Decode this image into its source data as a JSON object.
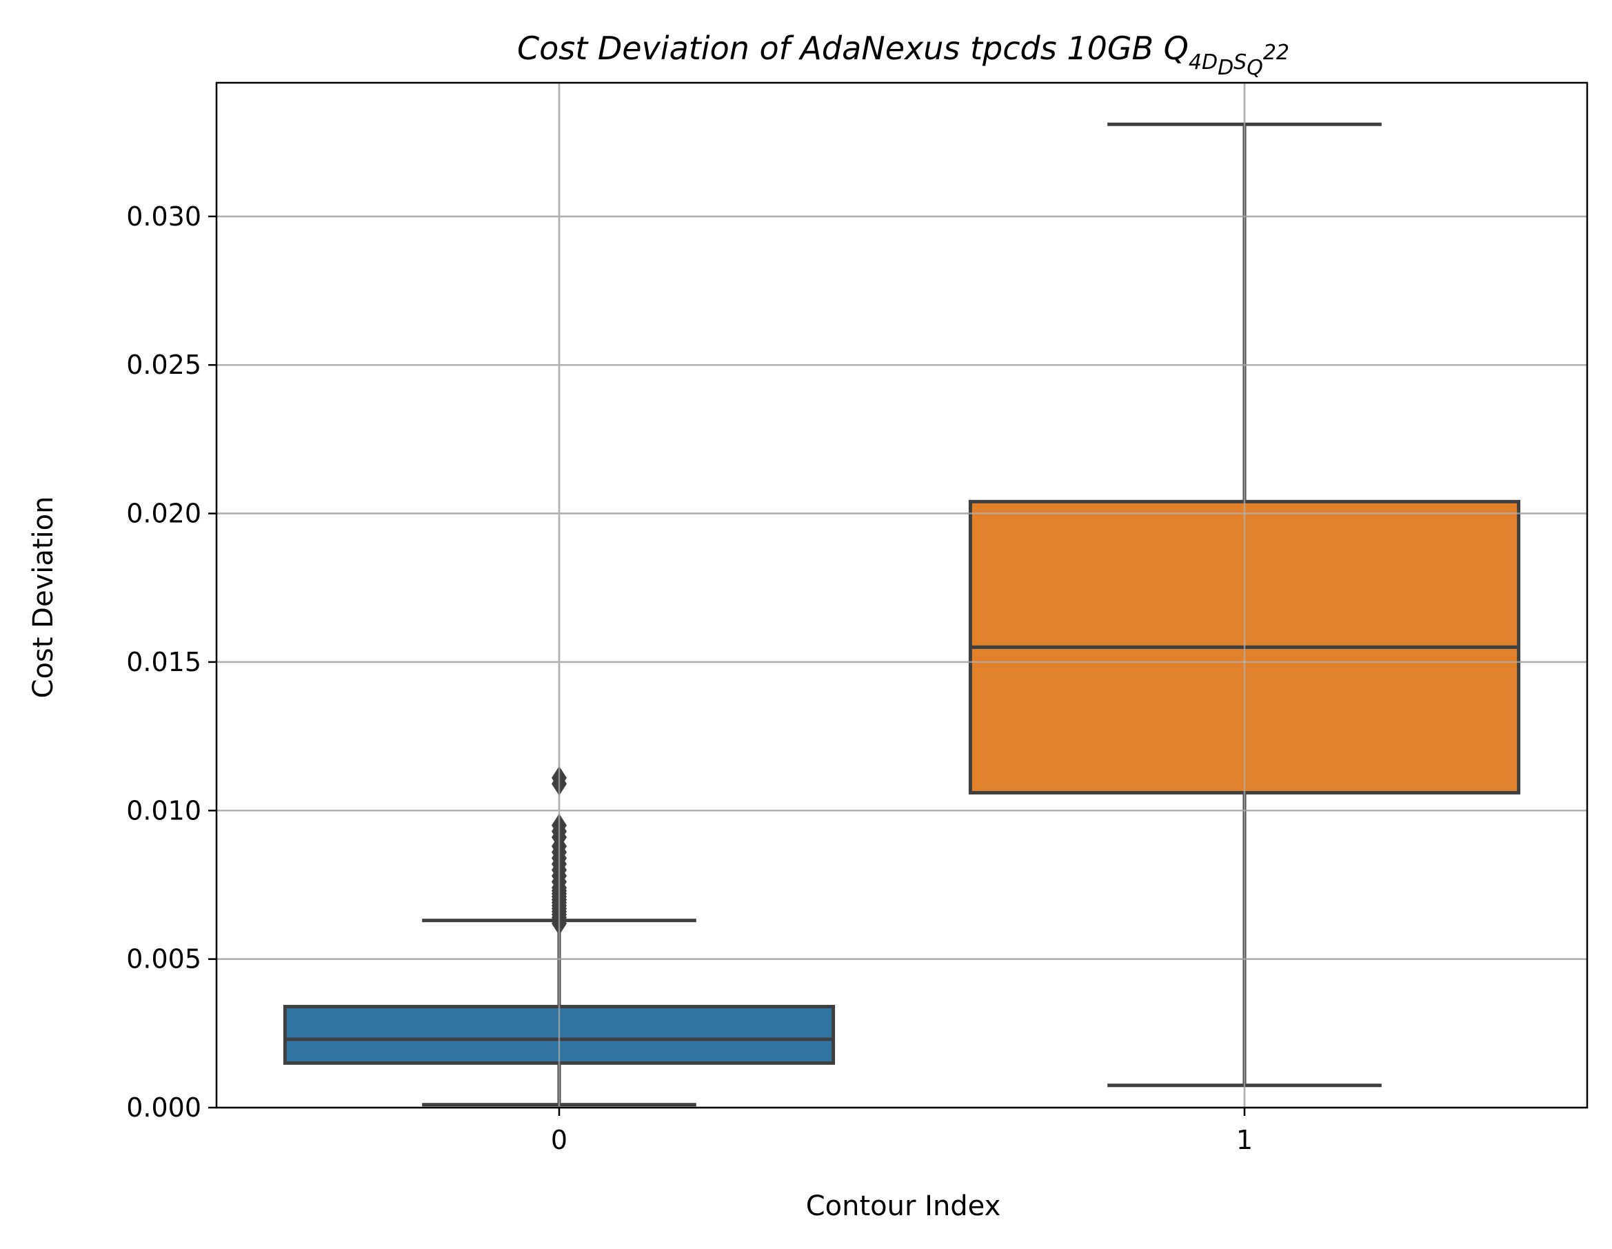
{
  "chart_data": {
    "type": "box",
    "title": "Cost Deviation of AdaNexus tpcds  10GB  Q",
    "title_subscript": "4D",
    "title_subscript2": "D",
    "title_subscript3": "S",
    "title_subscript4": "Q",
    "title_suffix": "22",
    "xlabel": "Contour Index",
    "ylabel": "Cost Deviation",
    "categories": [
      "0",
      "1"
    ],
    "ylim": [
      0,
      0.0345
    ],
    "yticks": [
      0.0,
      0.005,
      0.01,
      0.015,
      0.02,
      0.025,
      0.03
    ],
    "ytick_labels": [
      "0.000",
      "0.005",
      "0.010",
      "0.015",
      "0.020",
      "0.025",
      "0.030"
    ],
    "grid": true,
    "boxes": [
      {
        "category": "0",
        "whisker_low": 0.0001,
        "q1": 0.0015,
        "median": 0.0023,
        "q3": 0.0034,
        "whisker_high": 0.0063,
        "color": "#3274a1",
        "outliers": [
          0.0062,
          0.0064,
          0.0065,
          0.0066,
          0.0067,
          0.0068,
          0.0069,
          0.007,
          0.0071,
          0.0072,
          0.0073,
          0.0074,
          0.0076,
          0.0078,
          0.008,
          0.0082,
          0.0084,
          0.0086,
          0.0088,
          0.0091,
          0.0093,
          0.0095,
          0.0109,
          0.0111
        ]
      },
      {
        "category": "1",
        "whisker_low": 0.00075,
        "q1": 0.0106,
        "median": 0.0155,
        "q3": 0.0204,
        "whisker_high": 0.0331,
        "color": "#e1812c",
        "outliers": []
      }
    ],
    "line_color": "#3f3f3f",
    "grid_color": "#b0b0b0"
  }
}
